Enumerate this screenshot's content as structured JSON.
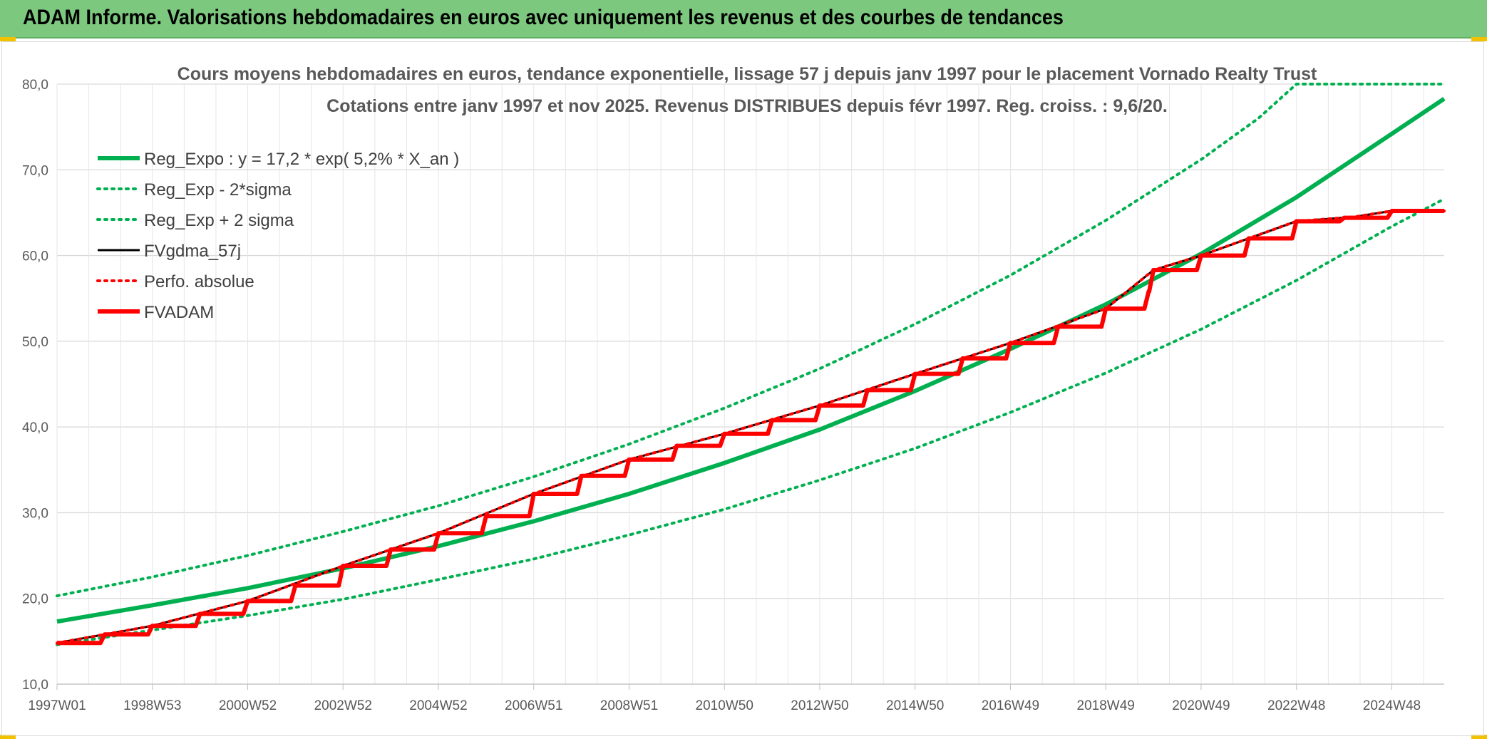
{
  "banner": {
    "title": "ADAM Informe. Valorisations hebdomadaires en euros avec uniquement les revenus et des courbes de tendances"
  },
  "colors": {
    "banner": "#7dc87f",
    "reg_expo": "#00b050",
    "band": "#00b050",
    "fvgdma": "#000000",
    "perfo": "#ff0000",
    "fvadam": "#ff0000",
    "grid": "#d9d9d9"
  },
  "chart_data": {
    "type": "line",
    "title": "Cours moyens hebdomadaires en euros, tendance exponentielle, lissage 57 j depuis janv 1997 pour le placement Vornado Realty Trust",
    "subtitle": "Cotations entre janv 1997 et nov 2025. Revenus DISTRIBUES depuis févr 1997. Reg. croiss. : 9,6/20.",
    "xlabel": "",
    "ylabel": "",
    "xlim": [
      1997.0,
      2026.1
    ],
    "ylim": [
      10,
      80
    ],
    "y_ticks": [
      "10,0",
      "20,0",
      "30,0",
      "40,0",
      "50,0",
      "60,0",
      "70,0",
      "80,0"
    ],
    "x_ticks": [
      {
        "label": "1997W01",
        "x": 1997.0
      },
      {
        "label": "1998W53",
        "x": 1999.0
      },
      {
        "label": "2000W52",
        "x": 2001.0
      },
      {
        "label": "2002W52",
        "x": 2003.0
      },
      {
        "label": "2004W52",
        "x": 2005.0
      },
      {
        "label": "2006W51",
        "x": 2007.0
      },
      {
        "label": "2008W51",
        "x": 2009.0
      },
      {
        "label": "2010W50",
        "x": 2011.0
      },
      {
        "label": "2012W50",
        "x": 2013.0
      },
      {
        "label": "2014W50",
        "x": 2015.0
      },
      {
        "label": "2016W49",
        "x": 2017.0
      },
      {
        "label": "2018W49",
        "x": 2019.0
      },
      {
        "label": "2020W49",
        "x": 2021.0
      },
      {
        "label": "2022W48",
        "x": 2023.0
      },
      {
        "label": "2024W48",
        "x": 2025.0
      }
    ],
    "grid": true,
    "legend_position": "top-left",
    "series": [
      {
        "name": "Reg_Expo : y = 17,2 * exp( 5,2% *  X_an )",
        "style": "solid-thick",
        "color": "#00b050",
        "x": [
          1997.0,
          1999.0,
          2001.0,
          2003.0,
          2005.0,
          2007.0,
          2009.0,
          2011.0,
          2013.0,
          2015.0,
          2017.0,
          2019.0,
          2021.0,
          2023.0,
          2025.0,
          2026.1
        ],
        "y": [
          17.3,
          19.2,
          21.2,
          23.5,
          26.1,
          29.0,
          32.2,
          35.8,
          39.7,
          44.2,
          49.1,
          54.3,
          60.2,
          66.8,
          74.2,
          78.3
        ]
      },
      {
        "name": "Reg_Exp - 2*sigma",
        "style": "dotted",
        "color": "#00b050",
        "x": [
          1997.0,
          1999.0,
          2001.0,
          2003.0,
          2005.0,
          2007.0,
          2009.0,
          2011.0,
          2013.0,
          2015.0,
          2017.0,
          2019.0,
          2021.0,
          2023.0,
          2025.0,
          2026.1
        ],
        "y": [
          14.6,
          16.3,
          18.0,
          19.9,
          22.2,
          24.6,
          27.4,
          30.4,
          33.8,
          37.5,
          41.7,
          46.3,
          51.4,
          57.1,
          63.4,
          66.6
        ]
      },
      {
        "name": "Reg_Exp + 2 sigma",
        "style": "dotted",
        "color": "#00b050",
        "x": [
          1997.0,
          1999.0,
          2001.0,
          2003.0,
          2005.0,
          2007.0,
          2009.0,
          2011.0,
          2013.0,
          2015.0,
          2017.0,
          2019.0,
          2021.0,
          2022.2,
          2023.0,
          2025.0,
          2026.1
        ],
        "y": [
          20.3,
          22.5,
          25.0,
          27.8,
          30.8,
          34.2,
          38.0,
          42.2,
          46.8,
          52.0,
          57.7,
          64.1,
          71.2,
          76.0,
          80.0,
          80.0,
          80.0
        ]
      },
      {
        "name": "FVgdma_57j",
        "style": "solid",
        "color": "#000000",
        "x": [
          1997.0,
          1999.0,
          2001.0,
          2003.0,
          2005.0,
          2007.0,
          2009.0,
          2011.0,
          2013.0,
          2015.0,
          2017.0,
          2019.0,
          2020.0,
          2021.0,
          2023.0,
          2024.2,
          2025.0,
          2026.1
        ],
        "y": [
          14.8,
          16.8,
          19.7,
          23.8,
          27.6,
          32.2,
          36.2,
          39.2,
          42.5,
          46.2,
          49.8,
          53.8,
          58.3,
          60.0,
          64.0,
          64.5,
          65.2,
          65.2
        ]
      },
      {
        "name": "Perfo. absolue",
        "style": "dotted",
        "color": "#ff0000",
        "x": [
          1997.0,
          1999.0,
          2001.0,
          2003.0,
          2005.0,
          2007.0,
          2009.0,
          2011.0,
          2013.0,
          2015.0,
          2017.0,
          2019.0,
          2020.0,
          2021.0,
          2023.0,
          2024.2,
          2025.0,
          2026.1
        ],
        "y": [
          14.8,
          16.8,
          19.7,
          23.8,
          27.6,
          32.2,
          36.2,
          39.2,
          42.5,
          46.2,
          49.8,
          53.8,
          58.3,
          60.0,
          64.0,
          64.5,
          65.2,
          65.2
        ]
      },
      {
        "name": "FVADAM",
        "style": "step-thick",
        "color": "#ff0000",
        "x": [
          1997.0,
          1998.0,
          1999.0,
          2000.0,
          2001.0,
          2002.0,
          2003.0,
          2004.0,
          2005.0,
          2006.0,
          2007.0,
          2008.0,
          2009.0,
          2010.0,
          2011.0,
          2012.0,
          2013.0,
          2014.0,
          2015.0,
          2016.0,
          2017.0,
          2018.0,
          2019.0,
          2019.9,
          2020.0,
          2021.0,
          2022.0,
          2023.0,
          2024.0,
          2025.0,
          2026.1
        ],
        "y": [
          14.8,
          15.8,
          16.8,
          18.2,
          19.7,
          21.5,
          23.8,
          25.7,
          27.6,
          29.6,
          32.2,
          34.3,
          36.2,
          37.8,
          39.2,
          40.8,
          42.5,
          44.3,
          46.2,
          48.0,
          49.8,
          51.7,
          53.8,
          55.8,
          58.3,
          60.0,
          62.0,
          64.0,
          64.4,
          65.2,
          65.2
        ]
      }
    ]
  }
}
